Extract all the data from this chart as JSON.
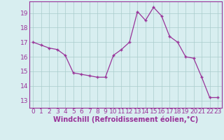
{
  "x": [
    0,
    1,
    2,
    3,
    4,
    5,
    6,
    7,
    8,
    9,
    10,
    11,
    12,
    13,
    14,
    15,
    16,
    17,
    18,
    19,
    20,
    21,
    22,
    23
  ],
  "y": [
    17.0,
    16.8,
    16.6,
    16.5,
    16.1,
    14.9,
    14.8,
    14.7,
    14.6,
    14.6,
    16.1,
    16.5,
    17.0,
    19.1,
    18.5,
    19.4,
    18.8,
    17.4,
    17.0,
    16.0,
    15.9,
    14.6,
    13.2,
    13.2
  ],
  "line_color": "#993399",
  "marker": "+",
  "marker_size": 3,
  "bg_color": "#d8eef0",
  "grid_color": "#aacccc",
  "xlabel": "Windchill (Refroidissement éolien,°C)",
  "xlabel_fontsize": 7,
  "text_color": "#993399",
  "ytick_labels": [
    "13",
    "14",
    "15",
    "16",
    "17",
    "18",
    "19"
  ],
  "ytick_values": [
    13,
    14,
    15,
    16,
    17,
    18,
    19
  ],
  "ylim": [
    12.5,
    19.8
  ],
  "xlim": [
    -0.5,
    23.5
  ],
  "tick_fontsize": 6.5,
  "border_color": "#993399",
  "linewidth": 0.9,
  "markeredgewidth": 1.0
}
